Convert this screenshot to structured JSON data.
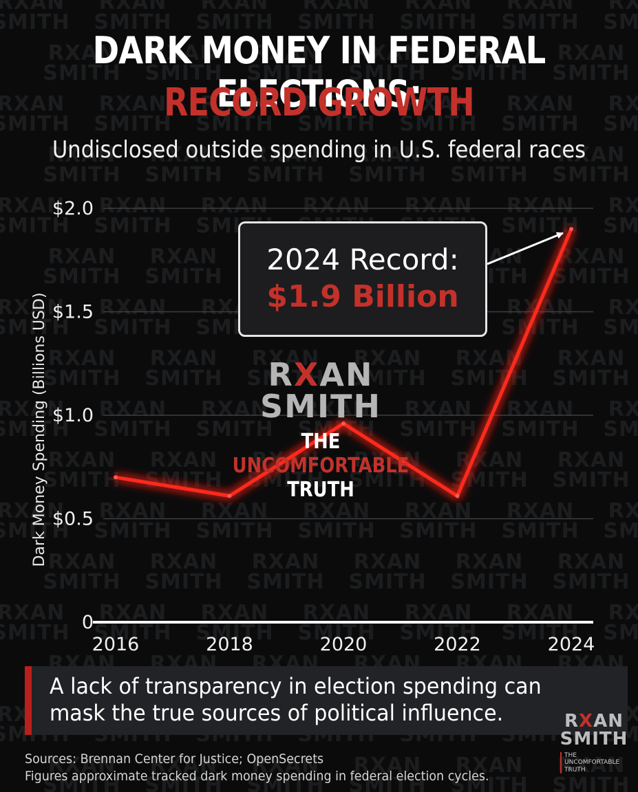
{
  "header": {
    "title_line1": "DARK MONEY IN FEDERAL ELECTIONS:",
    "title_line2": "RECORD GROWTH",
    "subtitle": "Undisclosed outside spending in U.S. federal races"
  },
  "callout": {
    "line1": "2024 Record:",
    "line2": "$1.9 Billion"
  },
  "logo": {
    "name_part1": "R",
    "name_x": "X",
    "name_part2": "AN",
    "name_line2": "SMITH",
    "tagline_white": "THE ",
    "tagline_red": "UNCOMFORTABLE",
    "tagline_line2": "TRUTH"
  },
  "corner_logo": {
    "tagline": "THE UNCOMFORTABLE TRUTH"
  },
  "banner": {
    "text": "A lack of transparency in election spending can mask the true sources of political influence."
  },
  "sources": {
    "line1": "Sources: Brennan Center for Justice; OpenSecrets",
    "line2": "Figures approximate tracked dark money spending in federal election cycles."
  },
  "colors": {
    "background": "#0b0b0c",
    "accent_red": "#c4312b",
    "line_red": "#e02a22",
    "text": "#ffffff"
  },
  "chart_data": {
    "type": "line",
    "x": [
      "2016",
      "2018",
      "2020",
      "2022",
      "2024"
    ],
    "series": [
      {
        "values": [
          0.7,
          0.61,
          0.96,
          0.61,
          1.9
        ]
      }
    ],
    "ylabel": "Dark Money Spending (Billions USD)",
    "ylim": [
      0,
      2.0
    ],
    "yticks": [
      {
        "value": 0,
        "label": "0"
      },
      {
        "value": 0.5,
        "label": "$0.5"
      },
      {
        "value": 1.0,
        "label": "$1.0"
      },
      {
        "value": 1.5,
        "label": "$1.5"
      },
      {
        "value": 2.0,
        "label": "$2.0"
      }
    ],
    "grid": true,
    "legend": "none"
  }
}
